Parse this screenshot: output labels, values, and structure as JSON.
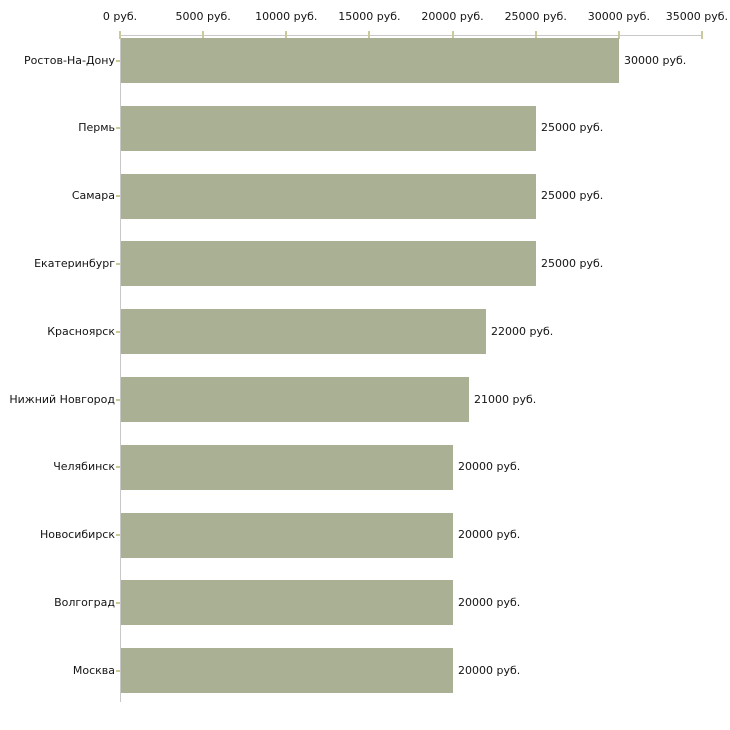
{
  "chart_data": {
    "type": "bar",
    "orientation": "horizontal",
    "title": "",
    "xlabel": "",
    "ylabel": "",
    "unit_suffix": " руб.",
    "categories": [
      "Ростов-На-Дону",
      "Пермь",
      "Самара",
      "Екатеринбург",
      "Красноярск",
      "Нижний Новгород",
      "Челябинск",
      "Новосибирск",
      "Волгоград",
      "Москва"
    ],
    "values": [
      30000,
      25000,
      25000,
      25000,
      22000,
      21000,
      20000,
      20000,
      20000,
      20000
    ],
    "value_labels": [
      "30000 руб.",
      "25000 руб.",
      "25000 руб.",
      "25000 руб.",
      "22000 руб.",
      "21000 руб.",
      "20000 руб.",
      "20000 руб.",
      "20000 руб.",
      "20000 руб."
    ],
    "xlim": [
      0,
      35000
    ],
    "x_tick_values": [
      0,
      5000,
      10000,
      15000,
      20000,
      25000,
      30000,
      35000
    ],
    "x_tick_labels": [
      "0 руб.",
      "5000 руб.",
      "10000 руб.",
      "15000 руб.",
      "20000 руб.",
      "25000 руб.",
      "30000 руб.",
      "35000 руб."
    ],
    "grid": false,
    "legend": "none",
    "colors": {
      "bar": "#aab094",
      "axis": "#c8c8c8",
      "tick": "#c9c99a",
      "text": "#141414"
    }
  }
}
